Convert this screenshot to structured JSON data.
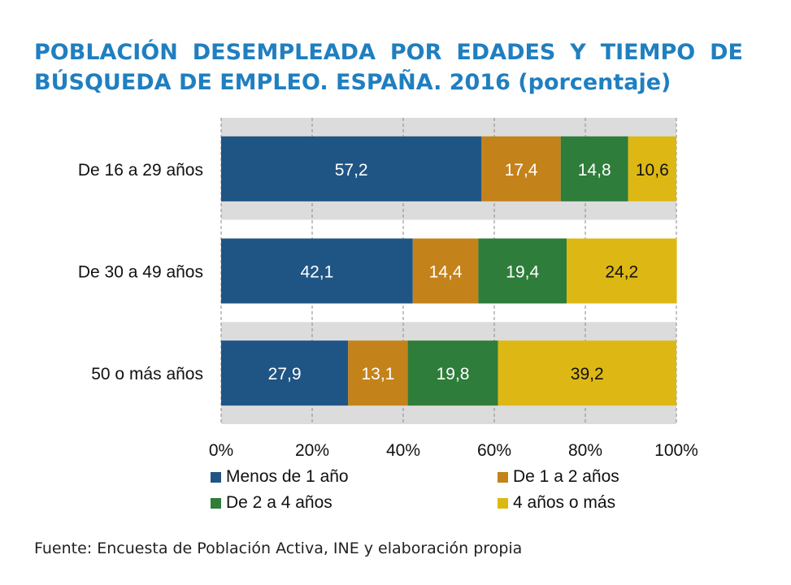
{
  "chart_data": {
    "type": "bar",
    "orientation": "horizontal",
    "stacked": true,
    "title": "POBLACIÓN DESEMPLEADA POR EDADES Y TIEMPO DE BÚSQUEDA DE EMPLEO. ESPAÑA. 2016 (porcentaje)",
    "categories": [
      "De 16 a 29 años",
      "De 30 a 49 años",
      "50 o más años"
    ],
    "series": [
      {
        "name": "Menos de 1 año",
        "values": [
          57.2,
          42.1,
          27.9
        ],
        "labels": [
          "57,2",
          "42,1",
          "27,9"
        ],
        "color": "#1f5585"
      },
      {
        "name": "De 1 a 2 años",
        "values": [
          17.4,
          14.4,
          13.1
        ],
        "labels": [
          "17,4",
          "14,4",
          "13,1"
        ],
        "color": "#c4821a"
      },
      {
        "name": "De 2 a 4 años",
        "values": [
          14.8,
          19.4,
          19.8
        ],
        "labels": [
          "14,8",
          "19,4",
          "19,8"
        ],
        "color": "#2e7d3a"
      },
      {
        "name": "4 años o más",
        "values": [
          10.6,
          24.2,
          39.2
        ],
        "labels": [
          "10,6",
          "24,2",
          "39,2"
        ],
        "color": "#ddb814"
      }
    ],
    "xlim": [
      0,
      100
    ],
    "xticks": [
      "0%",
      "20%",
      "40%",
      "60%",
      "80%",
      "100%"
    ],
    "legend_position": "bottom",
    "grid": true,
    "source": "Fuente: Encuesta de Población Activa, INE y elaboración propia"
  }
}
